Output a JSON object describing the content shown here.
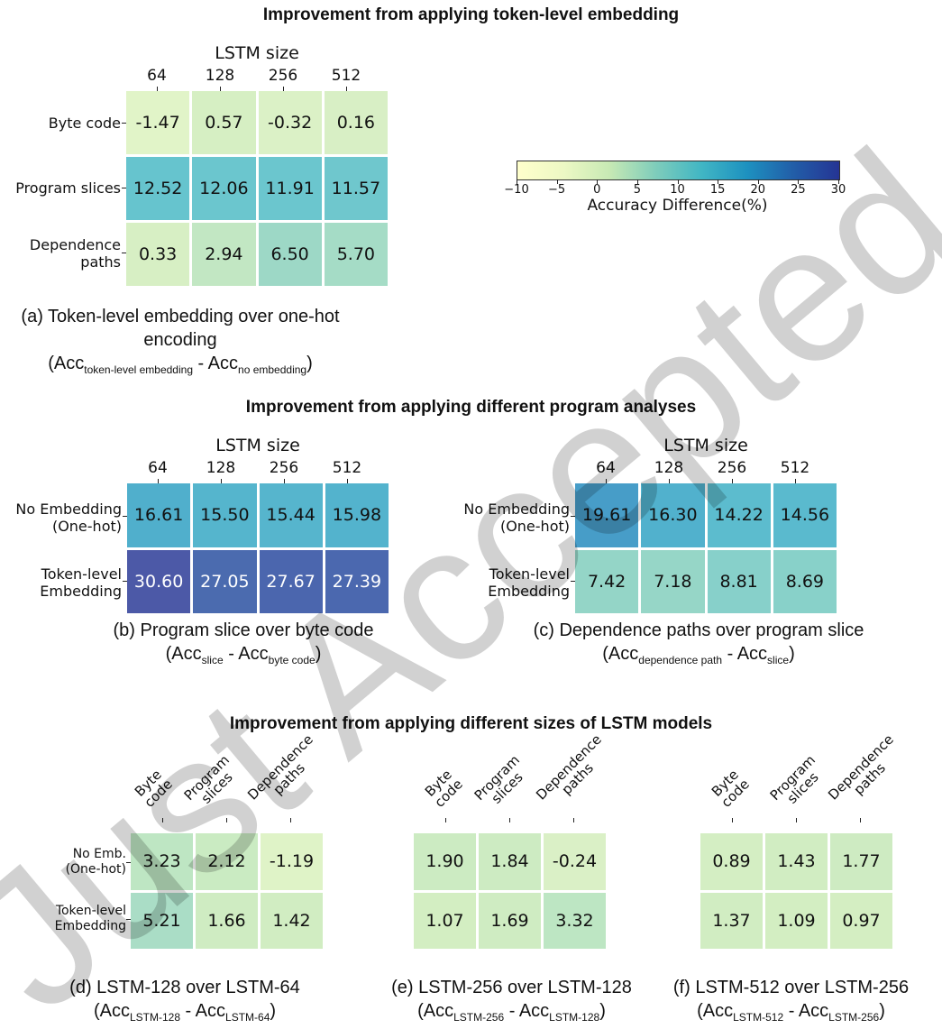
{
  "sections": {
    "a_title": "Improvement from applying token-level embedding",
    "bc_title": "Improvement from applying different program analyses",
    "def_title": "Improvement from applying different sizes of LSTM models"
  },
  "colorbar": {
    "label": "Accuracy Difference(%)",
    "ticks": [
      "−10",
      "−5",
      "0",
      "5",
      "10",
      "15",
      "20",
      "25",
      "30"
    ],
    "range": [
      -10,
      30
    ],
    "colors": [
      "#ffffcc",
      "#edf8c4",
      "#c7e9b4",
      "#7fcdbb",
      "#41b6c4",
      "#1d91c0",
      "#225ea8",
      "#253494"
    ]
  },
  "watermark": "Just Accepted",
  "chart_data": [
    {
      "type": "heatmap",
      "id": "a",
      "xlabel": "LSTM size",
      "x": [
        "64",
        "128",
        "256",
        "512"
      ],
      "y": [
        "Byte code",
        "Program slices",
        "Dependence paths"
      ],
      "values": [
        [
          -1.47,
          0.57,
          -0.32,
          0.16
        ],
        [
          12.52,
          12.06,
          11.91,
          11.57
        ],
        [
          0.33,
          2.94,
          6.5,
          5.7
        ]
      ],
      "labels": [
        [
          "-1.47",
          "0.57",
          "-0.32",
          "0.16"
        ],
        [
          "12.52",
          "12.06",
          "11.91",
          "11.57"
        ],
        [
          "0.33",
          "2.94",
          "6.50",
          "5.70"
        ]
      ],
      "caption": "(a) Token-level embedding over one-hot encoding",
      "formula": [
        "Acc",
        "token-level embedding",
        " - Acc",
        "no embedding",
        ")"
      ]
    },
    {
      "type": "heatmap",
      "id": "b",
      "xlabel": "LSTM size",
      "x": [
        "64",
        "128",
        "256",
        "512"
      ],
      "y": [
        "No Embedding (One-hot)",
        "Token-level Embedding"
      ],
      "values": [
        [
          16.61,
          15.5,
          15.44,
          15.98
        ],
        [
          30.6,
          27.05,
          27.67,
          27.39
        ]
      ],
      "labels": [
        [
          "16.61",
          "15.50",
          "15.44",
          "15.98"
        ],
        [
          "30.60",
          "27.05",
          "27.67",
          "27.39"
        ]
      ],
      "caption": "(b) Program slice over byte code",
      "formula": [
        "Acc",
        "slice",
        " - Acc",
        "byte code",
        ")"
      ]
    },
    {
      "type": "heatmap",
      "id": "c",
      "xlabel": "LSTM size",
      "x": [
        "64",
        "128",
        "256",
        "512"
      ],
      "y": [
        "No Embedding (One-hot)",
        "Token-level Embedding"
      ],
      "values": [
        [
          19.61,
          16.3,
          14.22,
          14.56
        ],
        [
          7.42,
          7.18,
          8.81,
          8.69
        ]
      ],
      "labels": [
        [
          "19.61",
          "16.30",
          "14.22",
          "14.56"
        ],
        [
          "7.42",
          "7.18",
          "8.81",
          "8.69"
        ]
      ],
      "caption": "(c) Dependence paths over program slice",
      "formula": [
        "Acc",
        "dependence path",
        " - Acc",
        "slice",
        ")"
      ]
    },
    {
      "type": "heatmap",
      "id": "d",
      "x": [
        "Byte code",
        "Program slices",
        "Dependence paths"
      ],
      "y": [
        "No Emb. (One-hot)",
        "Token-level Embedding"
      ],
      "values": [
        [
          3.23,
          2.12,
          -1.19
        ],
        [
          5.21,
          1.66,
          1.42
        ]
      ],
      "labels": [
        [
          "3.23",
          "2.12",
          "-1.19"
        ],
        [
          "5.21",
          "1.66",
          "1.42"
        ]
      ],
      "caption": "(d) LSTM-128 over LSTM-64",
      "formula": [
        "Acc",
        "LSTM-128",
        " - Acc",
        "LSTM-64",
        ")"
      ]
    },
    {
      "type": "heatmap",
      "id": "e",
      "x": [
        "Byte code",
        "Program slices",
        "Dependence paths"
      ],
      "y": [],
      "values": [
        [
          1.9,
          1.84,
          -0.24
        ],
        [
          1.07,
          1.69,
          3.32
        ]
      ],
      "labels": [
        [
          "1.90",
          "1.84",
          "-0.24"
        ],
        [
          "1.07",
          "1.69",
          "3.32"
        ]
      ],
      "caption": "(e) LSTM-256 over LSTM-128",
      "formula": [
        "Acc",
        "LSTM-256",
        " - Acc",
        "LSTM-128",
        ")"
      ]
    },
    {
      "type": "heatmap",
      "id": "f",
      "x": [
        "Byte code",
        "Program slices",
        "Dependence paths"
      ],
      "y": [],
      "values": [
        [
          0.89,
          1.43,
          1.77
        ],
        [
          1.37,
          1.09,
          0.97
        ]
      ],
      "labels": [
        [
          "0.89",
          "1.43",
          "1.77"
        ],
        [
          "1.37",
          "1.09",
          "0.97"
        ]
      ],
      "caption": "(f) LSTM-512 over LSTM-256",
      "formula": [
        "Acc",
        "LSTM-512",
        " - Acc",
        "LSTM-256",
        ")"
      ]
    }
  ]
}
